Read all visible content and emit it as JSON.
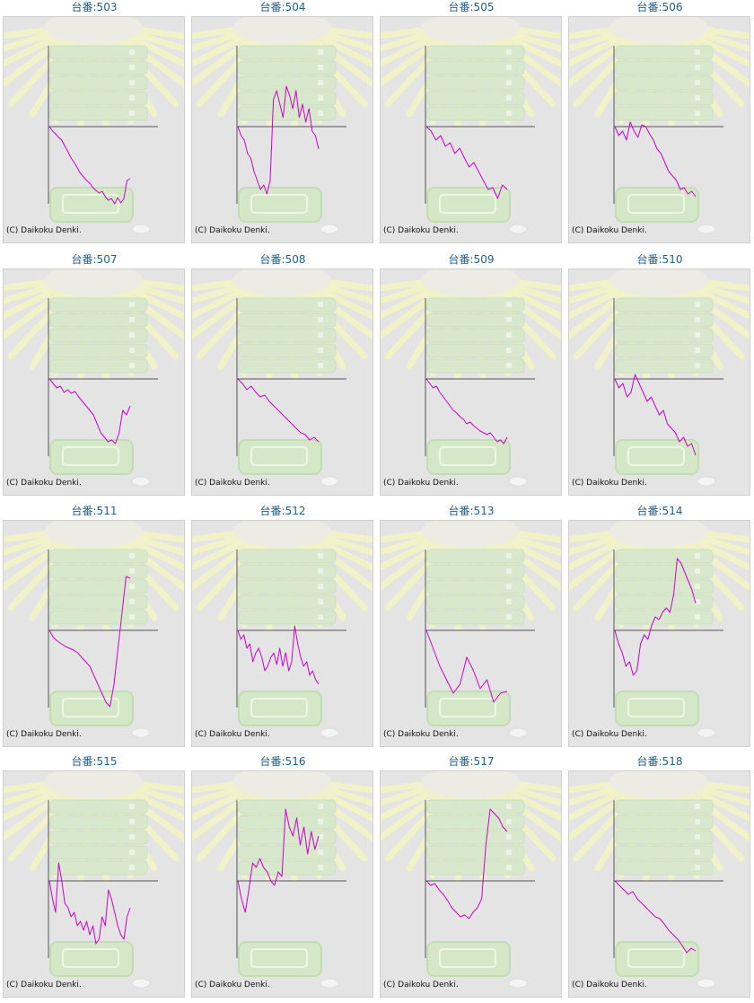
{
  "chart_data": [
    {
      "type": "line",
      "title": "台番:503",
      "copyright": "(C) Daikoku Denki.",
      "colors": {
        "series": "#cc00cc"
      },
      "y": [
        0,
        -5,
        -8,
        -12,
        -15,
        -22,
        -28,
        -35,
        -40,
        -46,
        -52,
        -56,
        -60,
        -63,
        -68,
        -71,
        -74,
        -72,
        -78,
        -82,
        -80,
        -86,
        -79,
        -85,
        -80,
        -60,
        -58
      ]
    },
    {
      "type": "line",
      "title": "台番:504",
      "copyright": "(C) Daikoku Denki.",
      "colors": {
        "series": "#cc00cc"
      },
      "y": [
        0,
        -10,
        -15,
        -30,
        -35,
        -50,
        -60,
        -70,
        -65,
        -75,
        -60,
        30,
        40,
        25,
        10,
        45,
        35,
        20,
        40,
        10,
        25,
        5,
        20,
        -5,
        -10,
        -25
      ]
    },
    {
      "type": "line",
      "title": "台番:505",
      "copyright": "(C) Daikoku Denki.",
      "colors": {
        "series": "#cc00cc"
      },
      "y": [
        0,
        -5,
        -15,
        -10,
        -22,
        -18,
        -30,
        -24,
        -35,
        -45,
        -40,
        -50,
        -60,
        -70,
        -68,
        -80,
        -65,
        -70
      ]
    },
    {
      "type": "line",
      "title": "台番:506",
      "copyright": "(C) Daikoku Denki.",
      "colors": {
        "series": "#cc00cc"
      },
      "y": [
        0,
        -10,
        -5,
        -15,
        5,
        -5,
        -12,
        2,
        0,
        -8,
        -15,
        -25,
        -30,
        -40,
        -50,
        -55,
        -60,
        -70,
        -68,
        -75,
        -72,
        -78
      ]
    },
    {
      "type": "line",
      "title": "台番:507",
      "copyright": "(C) Daikoku Denki.",
      "colors": {
        "series": "#cc00cc"
      },
      "y": [
        0,
        -5,
        -10,
        -8,
        -15,
        -12,
        -16,
        -14,
        -20,
        -25,
        -30,
        -35,
        -40,
        -50,
        -60,
        -65,
        -70,
        -68,
        -72,
        -60,
        -35,
        -40,
        -30
      ]
    },
    {
      "type": "line",
      "title": "台番:508",
      "copyright": "(C) Daikoku Denki.",
      "colors": {
        "series": "#cc00cc"
      },
      "y": [
        0,
        -5,
        -12,
        -8,
        -15,
        -20,
        -18,
        -25,
        -30,
        -35,
        -40,
        -45,
        -50,
        -55,
        -60,
        -62,
        -68,
        -65,
        -70
      ]
    },
    {
      "type": "line",
      "title": "台番:509",
      "copyright": "(C) Daikoku Denki.",
      "colors": {
        "series": "#cc00cc"
      },
      "y": [
        0,
        -5,
        -10,
        -8,
        -15,
        -20,
        -25,
        -30,
        -35,
        -38,
        -42,
        -45,
        -50,
        -48,
        -52,
        -55,
        -58,
        -60,
        -62,
        -60,
        -65,
        -70,
        -68,
        -72,
        -65
      ]
    },
    {
      "type": "line",
      "title": "台番:510",
      "copyright": "(C) Daikoku Denki.",
      "colors": {
        "series": "#cc00cc"
      },
      "y": [
        0,
        -10,
        -5,
        -20,
        -15,
        5,
        -5,
        -15,
        -25,
        -20,
        -30,
        -40,
        -35,
        -50,
        -55,
        -60,
        -70,
        -65,
        -75,
        -72,
        -85
      ]
    },
    {
      "type": "line",
      "title": "台番:511",
      "copyright": "(C) Daikoku Denki.",
      "colors": {
        "series": "#cc00cc"
      },
      "y": [
        0,
        -8,
        -12,
        -15,
        -18,
        -20,
        -22,
        -25,
        -30,
        -35,
        -40,
        -50,
        -60,
        -70,
        -80,
        -85,
        -60,
        -20,
        20,
        60,
        58
      ]
    },
    {
      "type": "line",
      "title": "台番:512",
      "copyright": "(C) Daikoku Denki.",
      "colors": {
        "series": "#cc00cc"
      },
      "y": [
        0,
        -10,
        -5,
        -20,
        -15,
        -35,
        -25,
        -20,
        -30,
        -45,
        -40,
        -30,
        -25,
        -38,
        -20,
        -40,
        -25,
        -45,
        -35,
        5,
        -15,
        -30,
        -40,
        -35,
        -50,
        -45,
        -55,
        -60
      ]
    },
    {
      "type": "line",
      "title": "台番:513",
      "copyright": "(C) Daikoku Denki.",
      "colors": {
        "series": "#cc00cc"
      },
      "y": [
        0,
        -20,
        -40,
        -55,
        -70,
        -60,
        -30,
        -45,
        -65,
        -55,
        -80,
        -70,
        -68
      ]
    },
    {
      "type": "line",
      "title": "台番:514",
      "copyright": "(C) Daikoku Denki.",
      "colors": {
        "series": "#cc00cc"
      },
      "y": [
        0,
        -15,
        -25,
        -40,
        -35,
        -50,
        -45,
        -15,
        -5,
        -10,
        5,
        15,
        12,
        20,
        25,
        20,
        40,
        80,
        75,
        65,
        55,
        45,
        30
      ]
    },
    {
      "type": "line",
      "title": "台番:515",
      "copyright": "(C) Daikoku Denki.",
      "colors": {
        "series": "#cc00cc"
      },
      "y": [
        0,
        -20,
        -35,
        20,
        0,
        -25,
        -30,
        -40,
        -35,
        -50,
        -45,
        -55,
        -45,
        -60,
        -50,
        -70,
        -65,
        -40,
        -50,
        -10,
        -20,
        -35,
        -50,
        -60,
        -65,
        -40,
        -30
      ]
    },
    {
      "type": "line",
      "title": "台番:516",
      "copyright": "(C) Daikoku Denki.",
      "colors": {
        "series": "#cc00cc"
      },
      "y": [
        0,
        -20,
        -35,
        -10,
        20,
        15,
        25,
        15,
        10,
        0,
        -5,
        10,
        5,
        80,
        60,
        50,
        70,
        40,
        60,
        30,
        55,
        35,
        50
      ]
    },
    {
      "type": "line",
      "title": "台番:517",
      "copyright": "(C) Daikoku Denki.",
      "colors": {
        "series": "#cc00cc"
      },
      "y": [
        0,
        -5,
        -3,
        -10,
        -15,
        -22,
        -30,
        -35,
        -40,
        -38,
        -42,
        -35,
        -30,
        -20,
        40,
        80,
        75,
        70,
        60,
        55
      ]
    },
    {
      "type": "line",
      "title": "台番:518",
      "copyright": "(C) Daikoku Denki.",
      "colors": {
        "series": "#cc00cc"
      },
      "y": [
        0,
        -5,
        -10,
        -15,
        -12,
        -20,
        -25,
        -30,
        -35,
        -40,
        -42,
        -48,
        -55,
        -60,
        -65,
        -72,
        -80,
        -75,
        -78
      ]
    }
  ]
}
